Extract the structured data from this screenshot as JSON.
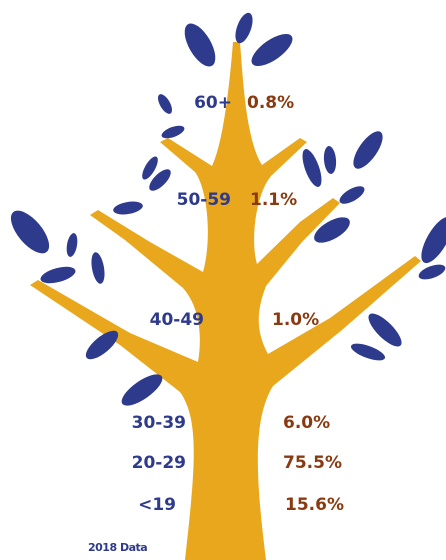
{
  "groups": [
    {
      "age": "60+",
      "share": "0.8%"
    },
    {
      "age": "50-59",
      "share": "1.1%"
    },
    {
      "age": "40-49",
      "share": "1.0%"
    },
    {
      "age": "30-39",
      "share": "6.0%"
    },
    {
      "age": "20-29",
      "share": "75.5%"
    },
    {
      "age": "<19",
      "share": "15.6%"
    }
  ],
  "footnote": "2018 Data"
}
